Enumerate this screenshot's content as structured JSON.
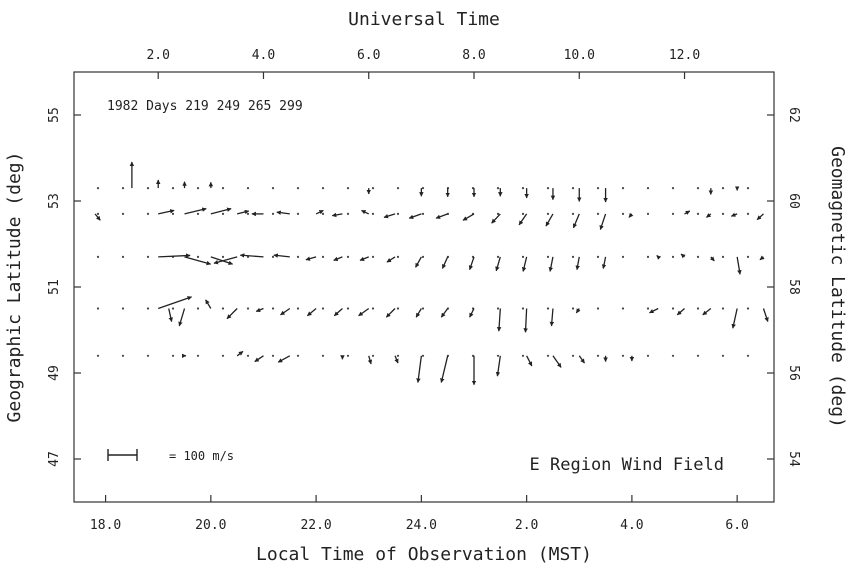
{
  "chart_data": {
    "type": "vector_field",
    "title": "E Region Wind Field",
    "annotation": "1982 Days 219 249 265 299",
    "scale_label": "= 100 m/s",
    "scale_speed_ms": 100,
    "x_bottom": {
      "label": "Local Time of Observation (MST)",
      "ticks": [
        "18.0",
        "20.0",
        "22.0",
        "24.0",
        "2.0",
        "4.0",
        "6.0"
      ],
      "range_hours": [
        17.4,
        30.7
      ]
    },
    "x_top": {
      "label": "Universal Time",
      "ticks": [
        "2.0",
        "4.0",
        "6.0",
        "8.0",
        "10.0",
        "12.0"
      ]
    },
    "y_left": {
      "label": "Geographic Latitude (deg)",
      "ticks": [
        47,
        49,
        51,
        53,
        55
      ],
      "range": [
        46.0,
        56.0
      ]
    },
    "y_right": {
      "label": "Geomagnetic Latitude (deg)",
      "ticks": [
        54,
        56,
        58,
        60,
        62
      ]
    },
    "rows": [
      {
        "latitude": 53.3,
        "vectors": [
          [
            18.5,
            0,
            90
          ],
          [
            19.0,
            0,
            28
          ],
          [
            19.5,
            0,
            22
          ],
          [
            20.0,
            0,
            20
          ],
          [
            23.0,
            0,
            -20
          ],
          [
            24.0,
            0,
            -28
          ],
          [
            24.5,
            0,
            -30
          ],
          [
            25.0,
            0,
            -30
          ],
          [
            25.5,
            0,
            -28
          ],
          [
            26.0,
            0,
            -34
          ],
          [
            26.5,
            0,
            -40
          ],
          [
            27.0,
            0,
            -46
          ],
          [
            27.5,
            0,
            -48
          ],
          [
            29.5,
            0,
            -22
          ],
          [
            30.0,
            0,
            -8
          ]
        ]
      },
      {
        "latitude": 52.7,
        "vectors": [
          [
            17.8,
            18,
            -22
          ],
          [
            19.0,
            55,
            12
          ],
          [
            19.5,
            75,
            18
          ],
          [
            20.0,
            70,
            18
          ],
          [
            20.5,
            40,
            10
          ],
          [
            21.0,
            -40,
            0
          ],
          [
            21.5,
            -45,
            6
          ],
          [
            22.0,
            25,
            12
          ],
          [
            22.5,
            -35,
            -6
          ],
          [
            23.0,
            -25,
            12
          ],
          [
            23.5,
            -38,
            -12
          ],
          [
            24.0,
            -42,
            -15
          ],
          [
            24.5,
            -40,
            -15
          ],
          [
            25.0,
            -38,
            -22
          ],
          [
            25.5,
            -30,
            -32
          ],
          [
            26.0,
            -26,
            -38
          ],
          [
            26.5,
            -24,
            -42
          ],
          [
            27.0,
            -20,
            -48
          ],
          [
            27.5,
            -18,
            -54
          ],
          [
            28.0,
            -10,
            -12
          ],
          [
            29.0,
            18,
            10
          ],
          [
            29.5,
            -15,
            -12
          ],
          [
            30.0,
            -20,
            -8
          ],
          [
            30.5,
            -22,
            -20
          ]
        ]
      },
      {
        "latitude": 51.7,
        "vectors": [
          [
            19.0,
            110,
            5
          ],
          [
            19.5,
            90,
            -25
          ],
          [
            20.0,
            75,
            -25
          ],
          [
            20.5,
            -80,
            -22
          ],
          [
            21.0,
            -80,
            6
          ],
          [
            21.5,
            -55,
            6
          ],
          [
            22.0,
            -35,
            -10
          ],
          [
            22.5,
            -30,
            -12
          ],
          [
            23.0,
            -30,
            -12
          ],
          [
            23.5,
            -28,
            -18
          ],
          [
            24.0,
            -20,
            -36
          ],
          [
            24.5,
            -18,
            -40
          ],
          [
            25.0,
            -15,
            -44
          ],
          [
            25.5,
            -14,
            -48
          ],
          [
            26.0,
            -12,
            -50
          ],
          [
            26.5,
            -10,
            -50
          ],
          [
            27.0,
            -8,
            -44
          ],
          [
            27.5,
            -8,
            -40
          ],
          [
            28.5,
            -5,
            5
          ],
          [
            29.0,
            -12,
            10
          ],
          [
            29.5,
            12,
            -14
          ],
          [
            30.0,
            10,
            -60
          ],
          [
            30.5,
            -12,
            -10
          ]
        ]
      },
      {
        "latitude": 50.5,
        "vectors": [
          [
            19.0,
            115,
            40
          ],
          [
            19.2,
            10,
            -45
          ],
          [
            19.5,
            -18,
            -60
          ],
          [
            20.0,
            -18,
            30
          ],
          [
            20.5,
            -35,
            -35
          ],
          [
            21.0,
            -25,
            -10
          ],
          [
            21.5,
            -32,
            -22
          ],
          [
            22.0,
            -30,
            -25
          ],
          [
            22.5,
            -28,
            -25
          ],
          [
            23.0,
            -35,
            -25
          ],
          [
            23.5,
            -30,
            -30
          ],
          [
            24.0,
            -18,
            -30
          ],
          [
            24.5,
            -22,
            -30
          ],
          [
            25.0,
            -15,
            -30
          ],
          [
            25.5,
            -5,
            -78
          ],
          [
            26.0,
            -4,
            -82
          ],
          [
            26.5,
            -5,
            -60
          ],
          [
            27.0,
            -10,
            -15
          ],
          [
            28.5,
            -30,
            -15
          ],
          [
            29.0,
            -25,
            -22
          ],
          [
            29.5,
            -28,
            -22
          ],
          [
            30.0,
            -15,
            -68
          ],
          [
            30.5,
            15,
            -45
          ]
        ]
      },
      {
        "latitude": 49.4,
        "vectors": [
          [
            19.5,
            5,
            0
          ],
          [
            20.5,
            20,
            15
          ],
          [
            21.0,
            -30,
            -20
          ],
          [
            21.5,
            -40,
            -22
          ],
          [
            22.5,
            0,
            -12
          ],
          [
            23.0,
            8,
            -28
          ],
          [
            23.5,
            10,
            -25
          ],
          [
            24.0,
            -12,
            -92
          ],
          [
            24.5,
            -22,
            -92
          ],
          [
            25.0,
            0,
            -100
          ],
          [
            25.5,
            -10,
            -70
          ],
          [
            26.0,
            18,
            -35
          ],
          [
            26.5,
            28,
            -40
          ],
          [
            27.0,
            18,
            -25
          ],
          [
            27.5,
            0,
            -20
          ],
          [
            28.0,
            0,
            -18
          ]
        ]
      }
    ],
    "vector_units": "m/s [local_time_h, eastward, northward]"
  }
}
